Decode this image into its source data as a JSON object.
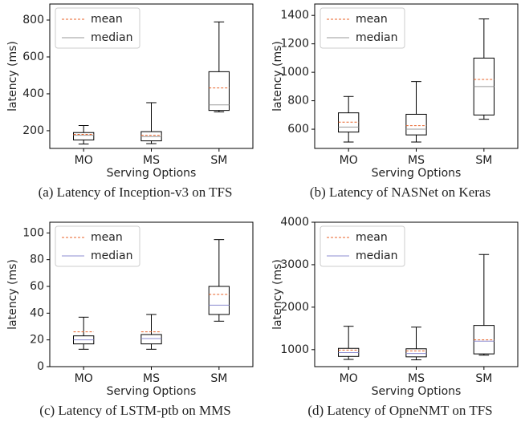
{
  "chart_data": [
    {
      "type": "box",
      "caption": "(a) Latency of Inception-v3 on TFS",
      "xlabel": "Serving Options",
      "ylabel": "latency (ms)",
      "categories": [
        "MO",
        "MS",
        "SM"
      ],
      "boxes": [
        {
          "min": 128,
          "q1": 150,
          "median": 175,
          "q3": 190,
          "max": 228,
          "mean": 180
        },
        {
          "min": 130,
          "q1": 145,
          "median": 168,
          "q3": 195,
          "max": 352,
          "mean": 175
        },
        {
          "min": 302,
          "q1": 310,
          "median": 340,
          "q3": 520,
          "max": 790,
          "mean": 432
        }
      ],
      "mean_style": {
        "name": "mean",
        "color": "#e8632a"
      },
      "median_style": {
        "name": "median",
        "color": "#999999"
      },
      "ylim": [
        104,
        887
      ],
      "yticks": [
        200,
        400,
        600,
        800
      ],
      "legend": "upper left"
    },
    {
      "type": "box",
      "caption": "(b) Latency of NASNet on Keras",
      "xlabel": "Serving Options",
      "ylabel": "latency (ms)",
      "categories": [
        "MO",
        "MS",
        "SM"
      ],
      "boxes": [
        {
          "min": 510,
          "q1": 580,
          "median": 615,
          "q3": 715,
          "max": 830,
          "mean": 650
        },
        {
          "min": 510,
          "q1": 560,
          "median": 600,
          "q3": 705,
          "max": 935,
          "mean": 625
        },
        {
          "min": 670,
          "q1": 700,
          "median": 900,
          "q3": 1100,
          "max": 1375,
          "mean": 950
        }
      ],
      "mean_style": {
        "name": "mean",
        "color": "#e8632a"
      },
      "median_style": {
        "name": "median",
        "color": "#999999"
      },
      "ylim": [
        465,
        1480
      ],
      "yticks": [
        600,
        800,
        1000,
        1200,
        1400
      ],
      "legend": "upper left"
    },
    {
      "type": "box",
      "caption": "(c) Latency of LSTM-ptb on MMS",
      "xlabel": "Serving Options",
      "ylabel": "latency (ms)",
      "categories": [
        "MO",
        "MS",
        "SM"
      ],
      "boxes": [
        {
          "min": 13,
          "q1": 17,
          "median": 20,
          "q3": 23,
          "max": 37,
          "mean": 26
        },
        {
          "min": 13,
          "q1": 17,
          "median": 21,
          "q3": 24,
          "max": 39,
          "mean": 26
        },
        {
          "min": 34,
          "q1": 39,
          "median": 46,
          "q3": 60,
          "max": 95,
          "mean": 54
        }
      ],
      "mean_style": {
        "name": "mean",
        "color": "#e8632a"
      },
      "median_style": {
        "name": "median",
        "color": "#8c8cd0"
      },
      "ylim": [
        0,
        108
      ],
      "yticks": [
        0,
        20,
        40,
        60,
        80,
        100
      ],
      "legend": "upper left"
    },
    {
      "type": "box",
      "caption": "(d) Latency of OpneNMT on TFS",
      "xlabel": "Serving Options",
      "ylabel": "latency (ms)",
      "categories": [
        "MO",
        "MS",
        "SM"
      ],
      "boxes": [
        {
          "min": 770,
          "q1": 840,
          "median": 930,
          "q3": 1030,
          "max": 1550,
          "mean": 990
        },
        {
          "min": 760,
          "q1": 830,
          "median": 910,
          "q3": 1020,
          "max": 1530,
          "mean": 970
        },
        {
          "min": 870,
          "q1": 900,
          "median": 1200,
          "q3": 1570,
          "max": 3240,
          "mean": 1230
        }
      ],
      "mean_style": {
        "name": "mean",
        "color": "#e8632a"
      },
      "median_style": {
        "name": "median",
        "color": "#8c8cd0"
      },
      "ylim": [
        600,
        4000
      ],
      "yticks": [
        1000,
        2000,
        3000,
        4000
      ],
      "legend": "upper left"
    }
  ]
}
